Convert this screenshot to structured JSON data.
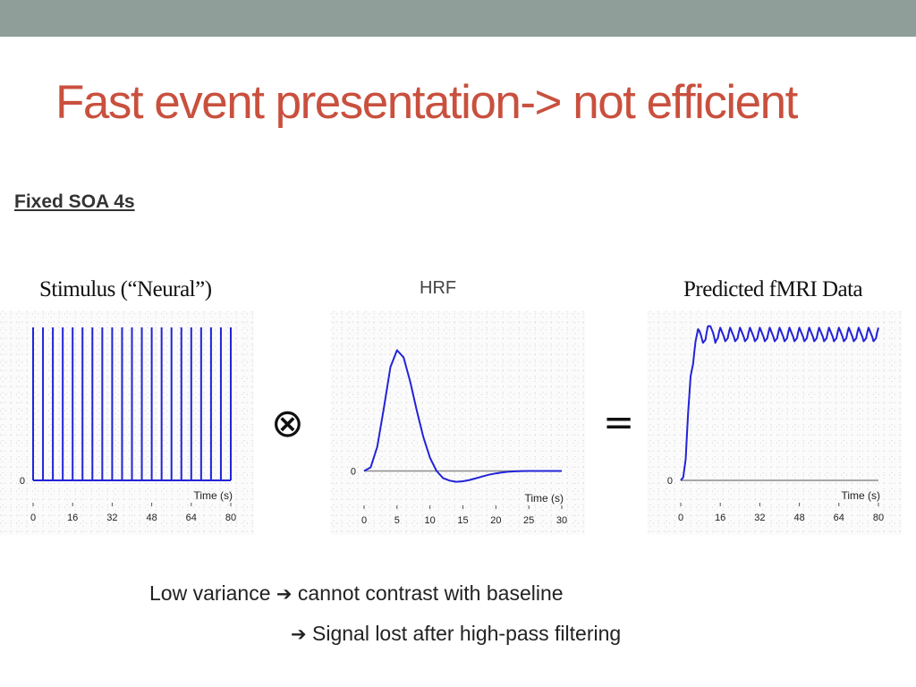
{
  "slide": {
    "title": "Fast event presentation-> not efficient",
    "subtitle": "Fixed SOA 4s",
    "operator_convolve": "⊗",
    "operator_equals": "=",
    "note_line1_pre": "Low variance",
    "note_line1_post": "cannot contrast with baseline",
    "note_line2": "Signal lost after high-pass filtering",
    "arrow_glyph": "➔",
    "topbar_color": "#8f9e98",
    "title_color": "#c9503e"
  },
  "chart_data": [
    {
      "type": "line",
      "title": "Stimulus (“Neural”)",
      "xlabel": "Time (s)",
      "ylabel": "",
      "xlim": [
        0,
        80
      ],
      "ylim": [
        0,
        1
      ],
      "xticks": [
        0,
        16,
        32,
        48,
        64,
        80
      ],
      "yticks": [
        0
      ],
      "stimulus_onsets": [
        0,
        4,
        8,
        12,
        16,
        20,
        24,
        28,
        32,
        36,
        40,
        44,
        48,
        52,
        56,
        60,
        64,
        68,
        72,
        76,
        80
      ],
      "grid": "dotted",
      "color": "#2323d8"
    },
    {
      "type": "line",
      "title": "HRF",
      "xlabel": "Time (s)",
      "ylabel": "",
      "xlim": [
        0,
        30
      ],
      "ylim": [
        -0.1,
        1.1
      ],
      "xticks": [
        0,
        5,
        10,
        15,
        20,
        25,
        30
      ],
      "yticks": [
        0
      ],
      "x": [
        0,
        1,
        2,
        3,
        4,
        5,
        6,
        7,
        8,
        9,
        10,
        11,
        12,
        13,
        14,
        15,
        16,
        17,
        18,
        19,
        20,
        21,
        22,
        23,
        24,
        25,
        26,
        27,
        28,
        29,
        30
      ],
      "y": [
        0,
        0.03,
        0.2,
        0.52,
        0.86,
        1.0,
        0.94,
        0.74,
        0.5,
        0.28,
        0.11,
        0.0,
        -0.06,
        -0.08,
        -0.09,
        -0.085,
        -0.075,
        -0.06,
        -0.045,
        -0.03,
        -0.02,
        -0.012,
        -0.006,
        -0.003,
        -0.001,
        0,
        0,
        0,
        0,
        0,
        0
      ],
      "grid": "dotted",
      "color": "#2323d8"
    },
    {
      "type": "line",
      "title": "Predicted fMRI Data",
      "xlabel": "Time (s)",
      "ylabel": "",
      "xlim": [
        0,
        80
      ],
      "ylim": [
        0,
        1
      ],
      "xticks": [
        0,
        16,
        32,
        48,
        64,
        80
      ],
      "yticks": [
        0
      ],
      "x": [
        0,
        0.5,
        1,
        1.5,
        2,
        2.5,
        3,
        3.5,
        4,
        4.5,
        5,
        5.5,
        6,
        6.5,
        7,
        7.5,
        8,
        8.5,
        9,
        9.5,
        10,
        10.5,
        11,
        11.5,
        12,
        12.5,
        13,
        13.5,
        14,
        14.5,
        15,
        15.5,
        16,
        16.5,
        17,
        17.5,
        18,
        18.5,
        19,
        19.5,
        20,
        20.5,
        21,
        21.5,
        22,
        22.5,
        23,
        23.5,
        24,
        24.5,
        25,
        25.5,
        26,
        26.5,
        27,
        27.5,
        28,
        28.5,
        29,
        29.5,
        30,
        30.5,
        31,
        31.5,
        32,
        32.5,
        33,
        33.5,
        34,
        34.5,
        35,
        35.5,
        36,
        36.5,
        37,
        37.5,
        38,
        38.5,
        39,
        39.5,
        40,
        40.5,
        41,
        41.5,
        42,
        42.5,
        43,
        43.5,
        44,
        44.5,
        45,
        45.5,
        46,
        46.5,
        47,
        47.5,
        48,
        48.5,
        49,
        49.5,
        50,
        50.5,
        51,
        51.5,
        52,
        52.5,
        53,
        53.5,
        54,
        54.5,
        55,
        55.5,
        56,
        56.5,
        57,
        57.5,
        58,
        58.5,
        59,
        59.5,
        60,
        60.5,
        61,
        61.5,
        62,
        62.5,
        63,
        63.5,
        64,
        64.5,
        65,
        65.5,
        66,
        66.5,
        67,
        67.5,
        68,
        68.5,
        69,
        69.5,
        70,
        70.5,
        71,
        71.5,
        72,
        72.5,
        73,
        73.5,
        74,
        74.5,
        75,
        75.5,
        76,
        76.5,
        77,
        77.5,
        78,
        78.5,
        79,
        79.5,
        80
      ],
      "y": [
        0.0,
        0.01,
        0.02,
        0.08,
        0.14,
        0.3,
        0.45,
        0.57,
        0.69,
        0.73,
        0.77,
        0.85,
        0.92,
        0.96,
        1.0,
        0.99,
        0.97,
        0.94,
        0.91,
        0.92,
        0.93,
        0.98,
        1.02,
        1.02,
        1.02,
        1.0,
        0.98,
        0.95,
        0.91,
        0.93,
        0.94,
        0.98,
        1.01,
        0.99,
        0.97,
        0.95,
        0.92,
        0.93,
        0.94,
        0.98,
        1.01,
        0.99,
        0.97,
        0.95,
        0.92,
        0.93,
        0.94,
        0.98,
        1.01,
        0.99,
        0.97,
        0.95,
        0.92,
        0.93,
        0.94,
        0.98,
        1.01,
        0.99,
        0.97,
        0.95,
        0.92,
        0.93,
        0.94,
        0.98,
        1.01,
        0.99,
        0.97,
        0.95,
        0.92,
        0.93,
        0.94,
        0.98,
        1.01,
        0.99,
        0.97,
        0.95,
        0.92,
        0.93,
        0.94,
        0.98,
        1.01,
        0.99,
        0.97,
        0.95,
        0.92,
        0.93,
        0.94,
        0.98,
        1.01,
        0.99,
        0.97,
        0.95,
        0.92,
        0.93,
        0.94,
        0.98,
        1.01,
        0.99,
        0.97,
        0.95,
        0.92,
        0.93,
        0.94,
        0.98,
        1.01,
        0.99,
        0.97,
        0.95,
        0.92,
        0.93,
        0.94,
        0.98,
        1.01,
        0.99,
        0.97,
        0.95,
        0.92,
        0.93,
        0.94,
        0.98,
        1.01,
        0.99,
        0.97,
        0.95,
        0.92,
        0.93,
        0.94,
        0.98,
        1.01,
        0.99,
        0.97,
        0.95,
        0.92,
        0.93,
        0.94,
        0.98,
        1.01,
        0.99,
        0.97,
        0.95,
        0.92,
        0.93,
        0.94,
        0.98,
        1.01,
        0.99,
        0.97,
        0.95,
        0.92,
        0.93,
        0.94,
        0.98,
        1.01,
        0.99,
        0.97,
        0.95,
        0.92,
        0.93,
        0.94,
        0.98,
        1.01
      ],
      "grid": "dotted",
      "color": "#2323d8"
    }
  ]
}
